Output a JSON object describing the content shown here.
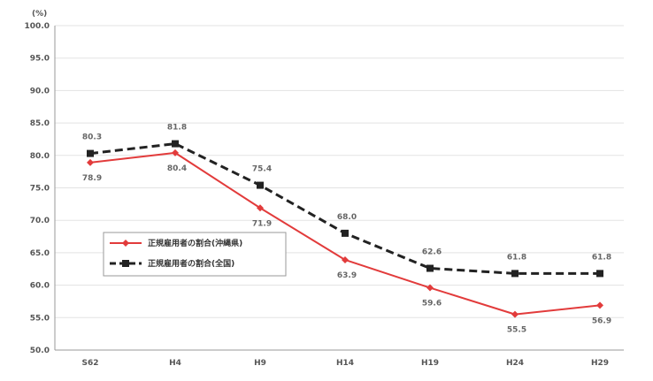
{
  "chart_data": {
    "type": "line",
    "title": "",
    "xlabel": "",
    "ylabel": "(%)",
    "categories": [
      "S62",
      "H4",
      "H9",
      "H14",
      "H19",
      "H24",
      "H29"
    ],
    "ylim": [
      50.0,
      100.0
    ],
    "yticks": [
      "50.0",
      "55.0",
      "60.0",
      "65.0",
      "70.0",
      "75.0",
      "80.0",
      "85.0",
      "90.0",
      "95.0",
      "100.0"
    ],
    "series": [
      {
        "name": "正規雇用者の割合(沖縄県)",
        "color": "#e23b3b",
        "style": "solid",
        "marker": "diamond",
        "values": [
          78.9,
          80.4,
          71.9,
          63.9,
          59.6,
          55.5,
          56.9
        ],
        "labels": [
          "78.9",
          "80.4",
          "71.9",
          "63.9",
          "59.6",
          "55.5",
          "56.9"
        ]
      },
      {
        "name": "正規雇用者の割合(全国)",
        "color": "#222222",
        "style": "dashed",
        "marker": "square",
        "values": [
          80.3,
          81.8,
          75.4,
          68.0,
          62.6,
          61.8,
          61.8
        ],
        "labels": [
          "80.3",
          "81.8",
          "75.4",
          "68.0",
          "62.6",
          "61.8",
          "61.8"
        ]
      }
    ],
    "grid": true,
    "legend_position": "center-left"
  }
}
